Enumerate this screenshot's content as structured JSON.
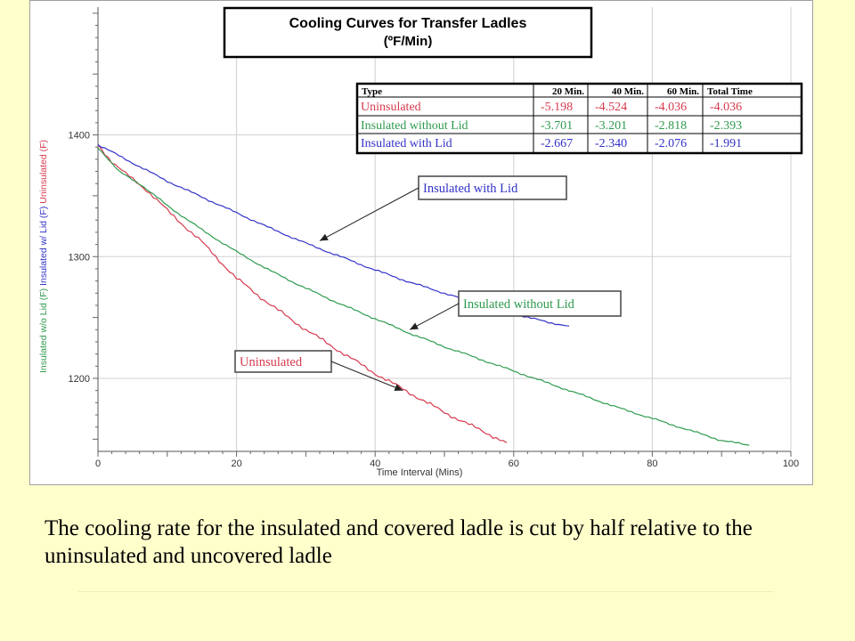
{
  "chart_data": {
    "type": "line",
    "title": "Cooling Curves for Transfer Ladles",
    "subtitle": "(ºF/Min)",
    "xlabel": "Time Interval (Mins)",
    "ylabel_segments": [
      {
        "text": "Insulated w/o Lid (F)",
        "color": "#2e9b4e"
      },
      {
        "text": "Insulated w/ Lid (F)",
        "color": "#3232c8"
      },
      {
        "text": "Uninsulated (F)",
        "color": "#d63a4e"
      }
    ],
    "xlim": [
      0,
      100
    ],
    "ylim": [
      1140,
      1505
    ],
    "x_ticks": [
      0,
      20,
      40,
      60,
      80,
      100
    ],
    "y_ticks": [
      1200,
      1300,
      1400
    ],
    "grid": true,
    "series": [
      {
        "name": "Uninsulated",
        "color": "#d63a4e",
        "x": [
          0,
          2,
          4,
          7,
          10,
          15,
          20,
          25,
          30,
          35,
          40,
          45,
          50,
          55,
          59
        ],
        "y": [
          1392,
          1378,
          1368,
          1355,
          1338,
          1312,
          1282,
          1260,
          1240,
          1222,
          1204,
          1188,
          1172,
          1158,
          1147
        ]
      },
      {
        "name": "Insulated without Lid",
        "color": "#2e9b4e",
        "x": [
          0,
          3,
          6,
          10,
          15,
          20,
          25,
          30,
          35,
          40,
          45,
          50,
          55,
          60,
          65,
          70,
          75,
          80,
          85,
          90,
          94
        ],
        "y": [
          1390,
          1370,
          1360,
          1342,
          1322,
          1304,
          1288,
          1274,
          1261,
          1249,
          1237,
          1226,
          1216,
          1206,
          1196,
          1186,
          1176,
          1167,
          1158,
          1149,
          1145
        ]
      },
      {
        "name": "Insulated with Lid",
        "color": "#3232c8",
        "x": [
          0,
          5,
          10,
          15,
          20,
          25,
          30,
          35,
          40,
          45,
          50,
          55,
          60,
          65,
          68
        ],
        "y": [
          1392,
          1377,
          1362,
          1349,
          1336,
          1323,
          1311,
          1300,
          1289,
          1279,
          1270,
          1261,
          1253,
          1246,
          1243
        ]
      }
    ],
    "table": {
      "headers": [
        "Type",
        "20 Min.",
        "40 Min.",
        "60 Min.",
        "Total Time"
      ],
      "rows": [
        {
          "cells": [
            "Uninsulated",
            "-5.198",
            "-4.524",
            "-4.036",
            "-4.036"
          ],
          "color": "#d63a4e"
        },
        {
          "cells": [
            "Insulated without Lid",
            "-3.701",
            "-3.201",
            "-2.818",
            "-2.393"
          ],
          "color": "#2e9b4e"
        },
        {
          "cells": [
            "Insulated with Lid",
            "-2.667",
            "-2.340",
            "-2.076",
            "-1.991"
          ],
          "color": "#3232c8"
        }
      ]
    },
    "annotations": [
      {
        "text": "Insulated with Lid",
        "color": "#3232c8",
        "points_to": [
          32,
          1313
        ]
      },
      {
        "text": "Insulated without Lid",
        "color": "#2e9b4e",
        "points_to": [
          45,
          1240
        ]
      },
      {
        "text": "Uninsulated",
        "color": "#d63a4e",
        "points_to": [
          44,
          1190
        ]
      }
    ]
  },
  "caption": "The cooling rate for the insulated and covered ladle is cut by half relative to the uninsulated and uncovered ladle",
  "colors": {
    "slide_background": "#ffffcc",
    "plot_background": "#ffffff",
    "grid": "#d0d0d0"
  }
}
